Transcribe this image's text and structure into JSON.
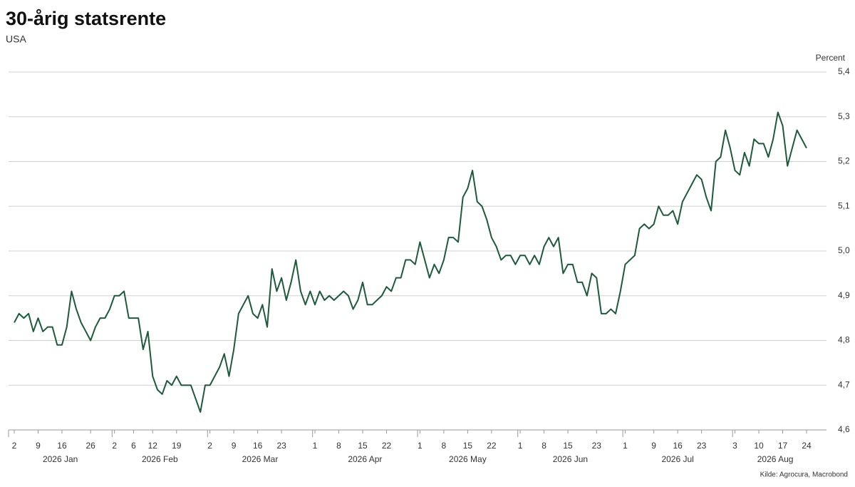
{
  "chart_data": {
    "type": "line",
    "title": "30-årig statsrente",
    "subtitle": "USA",
    "y_label": "Percent",
    "source": "Kilde: Agrocura, Macrobond",
    "x": [
      "2026-01-02",
      "2026-01-05",
      "2026-01-06",
      "2026-01-07",
      "2026-01-08",
      "2026-01-09",
      "2026-01-12",
      "2026-01-13",
      "2026-01-14",
      "2026-01-15",
      "2026-01-16",
      "2026-01-19",
      "2026-01-20",
      "2026-01-21",
      "2026-01-22",
      "2026-01-23",
      "2026-01-26",
      "2026-01-27",
      "2026-01-28",
      "2026-01-29",
      "2026-01-30",
      "2026-02-02",
      "2026-02-03",
      "2026-02-04",
      "2026-02-05",
      "2026-02-06",
      "2026-02-09",
      "2026-02-10",
      "2026-02-11",
      "2026-02-12",
      "2026-02-13",
      "2026-02-16",
      "2026-02-17",
      "2026-02-18",
      "2026-02-19",
      "2026-02-20",
      "2026-02-23",
      "2026-02-24",
      "2026-02-25",
      "2026-02-26",
      "2026-02-27",
      "2026-03-02",
      "2026-03-03",
      "2026-03-04",
      "2026-03-05",
      "2026-03-06",
      "2026-03-09",
      "2026-03-10",
      "2026-03-11",
      "2026-03-12",
      "2026-03-13",
      "2026-03-16",
      "2026-03-17",
      "2026-03-18",
      "2026-03-19",
      "2026-03-20",
      "2026-03-23",
      "2026-03-24",
      "2026-03-25",
      "2026-03-26",
      "2026-03-27",
      "2026-03-30",
      "2026-03-31",
      "2026-04-01",
      "2026-04-02",
      "2026-04-03",
      "2026-04-06",
      "2026-04-07",
      "2026-04-08",
      "2026-04-09",
      "2026-04-10",
      "2026-04-13",
      "2026-04-14",
      "2026-04-15",
      "2026-04-16",
      "2026-04-17",
      "2026-04-20",
      "2026-04-21",
      "2026-04-22",
      "2026-04-23",
      "2026-04-24",
      "2026-04-27",
      "2026-04-28",
      "2026-04-29",
      "2026-04-30",
      "2026-05-01",
      "2026-05-04",
      "2026-05-05",
      "2026-05-06",
      "2026-05-07",
      "2026-05-08",
      "2026-05-11",
      "2026-05-12",
      "2026-05-13",
      "2026-05-14",
      "2026-05-15",
      "2026-05-18",
      "2026-05-19",
      "2026-05-20",
      "2026-05-21",
      "2026-05-22",
      "2026-05-25",
      "2026-05-26",
      "2026-05-27",
      "2026-05-28",
      "2026-05-29",
      "2026-06-01",
      "2026-06-02",
      "2026-06-03",
      "2026-06-04",
      "2026-06-05",
      "2026-06-08",
      "2026-06-09",
      "2026-06-10",
      "2026-06-11",
      "2026-06-12",
      "2026-06-15",
      "2026-06-16",
      "2026-06-17",
      "2026-06-18",
      "2026-06-19",
      "2026-06-22",
      "2026-06-23",
      "2026-06-24",
      "2026-06-25",
      "2026-06-26",
      "2026-06-29",
      "2026-06-30",
      "2026-07-01",
      "2026-07-02",
      "2026-07-03",
      "2026-07-06",
      "2026-07-07",
      "2026-07-08",
      "2026-07-09",
      "2026-07-10",
      "2026-07-13",
      "2026-07-14",
      "2026-07-15",
      "2026-07-16",
      "2026-07-17",
      "2026-07-20",
      "2026-07-21",
      "2026-07-22",
      "2026-07-23",
      "2026-07-24",
      "2026-07-27",
      "2026-07-28",
      "2026-07-29",
      "2026-07-30",
      "2026-07-31",
      "2026-08-03",
      "2026-08-04",
      "2026-08-05",
      "2026-08-06",
      "2026-08-07",
      "2026-08-10",
      "2026-08-11",
      "2026-08-12",
      "2026-08-13",
      "2026-08-14",
      "2026-08-17",
      "2026-08-18",
      "2026-08-19",
      "2026-08-20",
      "2026-08-21",
      "2026-08-24"
    ],
    "series": [
      {
        "name": "USA",
        "color": "#1d5a3c",
        "values": [
          4.84,
          4.86,
          4.85,
          4.86,
          4.82,
          4.85,
          4.82,
          4.83,
          4.83,
          4.79,
          4.79,
          4.83,
          4.91,
          4.87,
          4.84,
          4.82,
          4.8,
          4.83,
          4.85,
          4.85,
          4.87,
          4.9,
          4.9,
          4.91,
          4.85,
          4.85,
          4.85,
          4.78,
          4.82,
          4.72,
          4.69,
          4.68,
          4.71,
          4.7,
          4.72,
          4.7,
          4.7,
          4.7,
          4.67,
          4.64,
          4.7,
          4.7,
          4.72,
          4.74,
          4.77,
          4.72,
          4.78,
          4.86,
          4.88,
          4.9,
          4.86,
          4.85,
          4.88,
          4.83,
          4.96,
          4.91,
          4.94,
          4.89,
          4.93,
          4.98,
          4.91,
          4.88,
          4.91,
          4.88,
          4.91,
          4.89,
          4.9,
          4.89,
          4.9,
          4.91,
          4.9,
          4.87,
          4.89,
          4.93,
          4.88,
          4.88,
          4.89,
          4.9,
          4.92,
          4.91,
          4.94,
          4.94,
          4.98,
          4.98,
          4.97,
          5.02,
          4.98,
          4.94,
          4.97,
          4.95,
          4.98,
          5.03,
          5.03,
          5.02,
          5.12,
          5.14,
          5.18,
          5.11,
          5.1,
          5.07,
          5.03,
          5.01,
          4.98,
          4.99,
          4.99,
          4.97,
          4.99,
          4.99,
          4.97,
          4.99,
          4.97,
          5.01,
          5.03,
          5.01,
          5.03,
          4.95,
          4.97,
          4.97,
          4.93,
          4.93,
          4.9,
          4.95,
          4.94,
          4.86,
          4.86,
          4.87,
          4.86,
          4.91,
          4.97,
          4.98,
          4.99,
          5.05,
          5.06,
          5.05,
          5.06,
          5.1,
          5.08,
          5.08,
          5.09,
          5.06,
          5.11,
          5.13,
          5.15,
          5.17,
          5.16,
          5.12,
          5.09,
          5.2,
          5.21,
          5.27,
          5.23,
          5.18,
          5.17,
          5.22,
          5.19,
          5.25,
          5.24,
          5.24,
          5.21,
          5.25,
          5.31,
          5.28,
          5.19,
          5.23,
          5.27,
          5.25,
          5.23
        ]
      }
    ],
    "xticks": [
      {
        "value": "2026-01-02",
        "label": "2"
      },
      {
        "value": "2026-01-09",
        "label": "9"
      },
      {
        "value": "2026-01-16",
        "label": "16"
      },
      {
        "value": "2026-01-26",
        "label": "26"
      },
      {
        "value": "2026-02-02",
        "label": "2"
      },
      {
        "value": "2026-02-06",
        "label": "6"
      },
      {
        "value": "2026-02-12",
        "label": "12"
      },
      {
        "value": "2026-02-19",
        "label": "19"
      },
      {
        "value": "2026-03-02",
        "label": "2"
      },
      {
        "value": "2026-03-09",
        "label": "9"
      },
      {
        "value": "2026-03-16",
        "label": "16"
      },
      {
        "value": "2026-03-23",
        "label": "23"
      },
      {
        "value": "2026-04-01",
        "label": "1"
      },
      {
        "value": "2026-04-08",
        "label": "8"
      },
      {
        "value": "2026-04-15",
        "label": "15"
      },
      {
        "value": "2026-04-22",
        "label": "22"
      },
      {
        "value": "2026-05-01",
        "label": "1"
      },
      {
        "value": "2026-05-08",
        "label": "8"
      },
      {
        "value": "2026-05-15",
        "label": "15"
      },
      {
        "value": "2026-05-22",
        "label": "22"
      },
      {
        "value": "2026-06-01",
        "label": "1"
      },
      {
        "value": "2026-06-08",
        "label": "8"
      },
      {
        "value": "2026-06-15",
        "label": "15"
      },
      {
        "value": "2026-06-23",
        "label": "23"
      },
      {
        "value": "2026-07-01",
        "label": "1"
      },
      {
        "value": "2026-07-09",
        "label": "9"
      },
      {
        "value": "2026-07-16",
        "label": "16"
      },
      {
        "value": "2026-07-23",
        "label": "23"
      },
      {
        "value": "2026-08-03",
        "label": "3"
      },
      {
        "value": "2026-08-10",
        "label": "10"
      },
      {
        "value": "2026-08-17",
        "label": "17"
      },
      {
        "value": "2026-08-24",
        "label": "24"
      }
    ],
    "months": [
      "2026 Jan",
      "2026 Feb",
      "2026 Mar",
      "2026 Apr",
      "2026 May",
      "2026 Jun",
      "2026 Jul",
      "2026 Aug"
    ],
    "ylim": [
      4.6,
      5.4
    ],
    "yticks": [
      {
        "value": 4.6,
        "label": "4,6"
      },
      {
        "value": 4.7,
        "label": "4,7"
      },
      {
        "value": 4.8,
        "label": "4,8"
      },
      {
        "value": 4.9,
        "label": "4,9"
      },
      {
        "value": 5.0,
        "label": "5,0"
      },
      {
        "value": 5.1,
        "label": "5,1"
      },
      {
        "value": 5.2,
        "label": "5,2"
      },
      {
        "value": 5.3,
        "label": "5,3"
      },
      {
        "value": 5.4,
        "label": "5,4"
      }
    ],
    "grid": true
  }
}
